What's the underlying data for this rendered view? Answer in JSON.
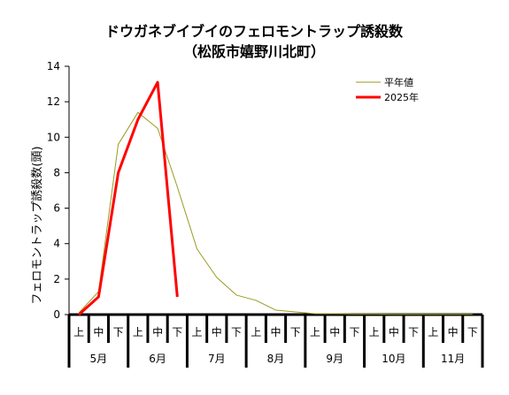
{
  "chart_data": {
    "type": "line",
    "title": "ドウガネブイブイのフェロモントラップ誘殺数",
    "subtitle": "（松阪市嬉野川北町）",
    "ylabel": "フェロモントラップ誘殺数(頭)",
    "xlabel": "",
    "ylim": [
      0,
      14
    ],
    "yticks": [
      0,
      2,
      4,
      6,
      8,
      10,
      12,
      14
    ],
    "grid": false,
    "legend_position": "top-right",
    "categories": [
      "上",
      "中",
      "下",
      "上",
      "中",
      "下",
      "上",
      "中",
      "下",
      "上",
      "中",
      "下",
      "上",
      "中",
      "下",
      "上",
      "中",
      "下",
      "上",
      "中",
      "下"
    ],
    "months": [
      "5月",
      "6月",
      "7月",
      "8月",
      "9月",
      "10月",
      "11月"
    ],
    "series": [
      {
        "name": "平年値",
        "color": "#9a9a20",
        "values": [
          0.1,
          1.3,
          9.6,
          11.4,
          10.5,
          7.2,
          3.7,
          2.1,
          1.1,
          0.8,
          0.25,
          0.15,
          0.05,
          0.05,
          0.03,
          0.03,
          0.02,
          0.02,
          0.02,
          0.02,
          0.02
        ]
      },
      {
        "name": "2025年",
        "color": "#ff0000",
        "values": [
          0,
          1,
          8,
          11,
          13.1,
          1,
          null,
          null,
          null,
          null,
          null,
          null,
          null,
          null,
          null,
          null,
          null,
          null,
          null,
          null,
          null
        ]
      }
    ]
  }
}
